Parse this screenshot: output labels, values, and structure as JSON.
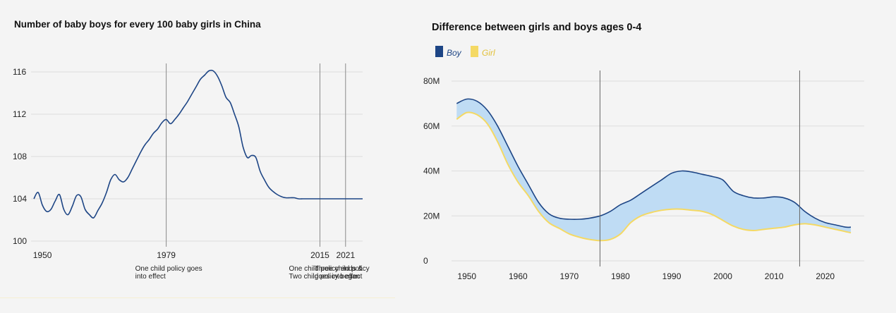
{
  "colors": {
    "background": "#f4f4f4",
    "boy": "#1d4585",
    "girl": "#f4d964",
    "gap_fill": "#bfdcf4",
    "grid": "#dddddd",
    "policy_line": "#8a8a8a"
  },
  "chart_data": [
    {
      "type": "line",
      "title": "Number of baby boys for every 100 baby girls in China",
      "xlabel": "",
      "ylabel": "",
      "xlim": [
        1948,
        2025
      ],
      "ylim": [
        100,
        117
      ],
      "yticks": [
        100,
        104,
        108,
        112,
        116
      ],
      "xticks": [
        1950,
        1979,
        2015,
        2021
      ],
      "grid": true,
      "series": [
        {
          "color": "#1d4585",
          "x": [
            1948,
            1949,
            1950,
            1951,
            1952,
            1953,
            1954,
            1955,
            1956,
            1957,
            1958,
            1959,
            1960,
            1961,
            1962,
            1963,
            1964,
            1965,
            1966,
            1967,
            1968,
            1969,
            1970,
            1971,
            1972,
            1973,
            1974,
            1975,
            1976,
            1977,
            1978,
            1979,
            1980,
            1981,
            1982,
            1983,
            1984,
            1985,
            1986,
            1987,
            1988,
            1989,
            1990,
            1991,
            1992,
            1993,
            1994,
            1995,
            1996,
            1997,
            1998,
            1999,
            2000,
            2001,
            2002,
            2003,
            2004,
            2005,
            2006,
            2007,
            2008,
            2009,
            2010,
            2011,
            2012,
            2013,
            2014,
            2015,
            2016,
            2017,
            2018,
            2019,
            2020,
            2021,
            2022,
            2023,
            2024,
            2025
          ],
          "y": [
            104.0,
            104.6,
            103.4,
            102.8,
            103.0,
            103.8,
            104.4,
            103.0,
            102.5,
            103.3,
            104.3,
            104.2,
            103.0,
            102.5,
            102.2,
            102.9,
            103.6,
            104.6,
            105.8,
            106.3,
            105.8,
            105.6,
            106.0,
            106.8,
            107.6,
            108.4,
            109.1,
            109.6,
            110.2,
            110.6,
            111.2,
            111.5,
            111.1,
            111.5,
            112.0,
            112.6,
            113.2,
            113.9,
            114.6,
            115.3,
            115.7,
            116.1,
            116.1,
            115.6,
            114.7,
            113.6,
            113.1,
            112.0,
            110.8,
            108.9,
            107.9,
            108.1,
            107.9,
            106.6,
            105.8,
            105.1,
            104.7,
            104.4,
            104.2,
            104.1,
            104.1,
            104.1,
            104.0,
            104.0,
            104.0,
            104.0,
            104.0,
            104.0,
            104.0,
            104.0,
            104.0,
            104.0,
            104.0,
            104.0,
            104.0,
            104.0,
            104.0,
            104.0
          ]
        }
      ],
      "annotations": [
        {
          "x": 1979,
          "lines": [
            "One child policy goes",
            "into effect"
          ]
        },
        {
          "x": 2015,
          "lines": [
            "One child policy ends &",
            "Two child policy began"
          ]
        },
        {
          "x": 2021,
          "lines": [
            "Three child policy",
            "goes into effect"
          ]
        }
      ]
    },
    {
      "type": "area",
      "title": "Difference between girls and boys ages 0-4",
      "xlabel": "",
      "ylabel": "",
      "xlim": [
        1947,
        2025
      ],
      "ylim": [
        0,
        80
      ],
      "y_unit": "M",
      "yticks": [
        0,
        20,
        40,
        60,
        80
      ],
      "ytick_labels": [
        "0",
        "20M",
        "40M",
        "60M",
        "80M"
      ],
      "xticks": [
        1950,
        1960,
        1970,
        1980,
        1990,
        2000,
        2010,
        2020
      ],
      "grid": true,
      "legend_position": "top-left",
      "vertical_lines": [
        1976,
        2015
      ],
      "x": [
        1948,
        1950,
        1952,
        1954,
        1956,
        1958,
        1960,
        1962,
        1964,
        1966,
        1968,
        1970,
        1972,
        1974,
        1976,
        1978,
        1980,
        1982,
        1984,
        1986,
        1988,
        1990,
        1992,
        1994,
        1996,
        1998,
        2000,
        2002,
        2004,
        2006,
        2008,
        2010,
        2012,
        2014,
        2016,
        2018,
        2020,
        2022,
        2024,
        2025
      ],
      "series": [
        {
          "name": "Boy",
          "color": "#1d4585",
          "values": [
            70,
            72,
            71,
            67,
            60,
            51,
            42,
            34,
            26,
            21,
            19,
            18.5,
            18.5,
            19,
            20,
            22,
            25,
            27,
            30,
            33,
            36,
            39,
            40,
            39.5,
            38.5,
            37.5,
            36,
            31,
            29,
            28,
            28,
            28.5,
            28,
            26,
            22,
            19,
            17,
            16,
            15,
            15
          ]
        },
        {
          "name": "Girl",
          "color": "#f4d964",
          "values": [
            63,
            66,
            65,
            61,
            53,
            43,
            35,
            29,
            22,
            17,
            14.5,
            12,
            10.5,
            9.5,
            9,
            9.5,
            12,
            17,
            20,
            21.5,
            22.5,
            23,
            23,
            22.5,
            22,
            20.5,
            18,
            15.5,
            14,
            13.5,
            14,
            14.5,
            15,
            16,
            16.5,
            16,
            15,
            14,
            13,
            12.5
          ]
        }
      ]
    }
  ]
}
